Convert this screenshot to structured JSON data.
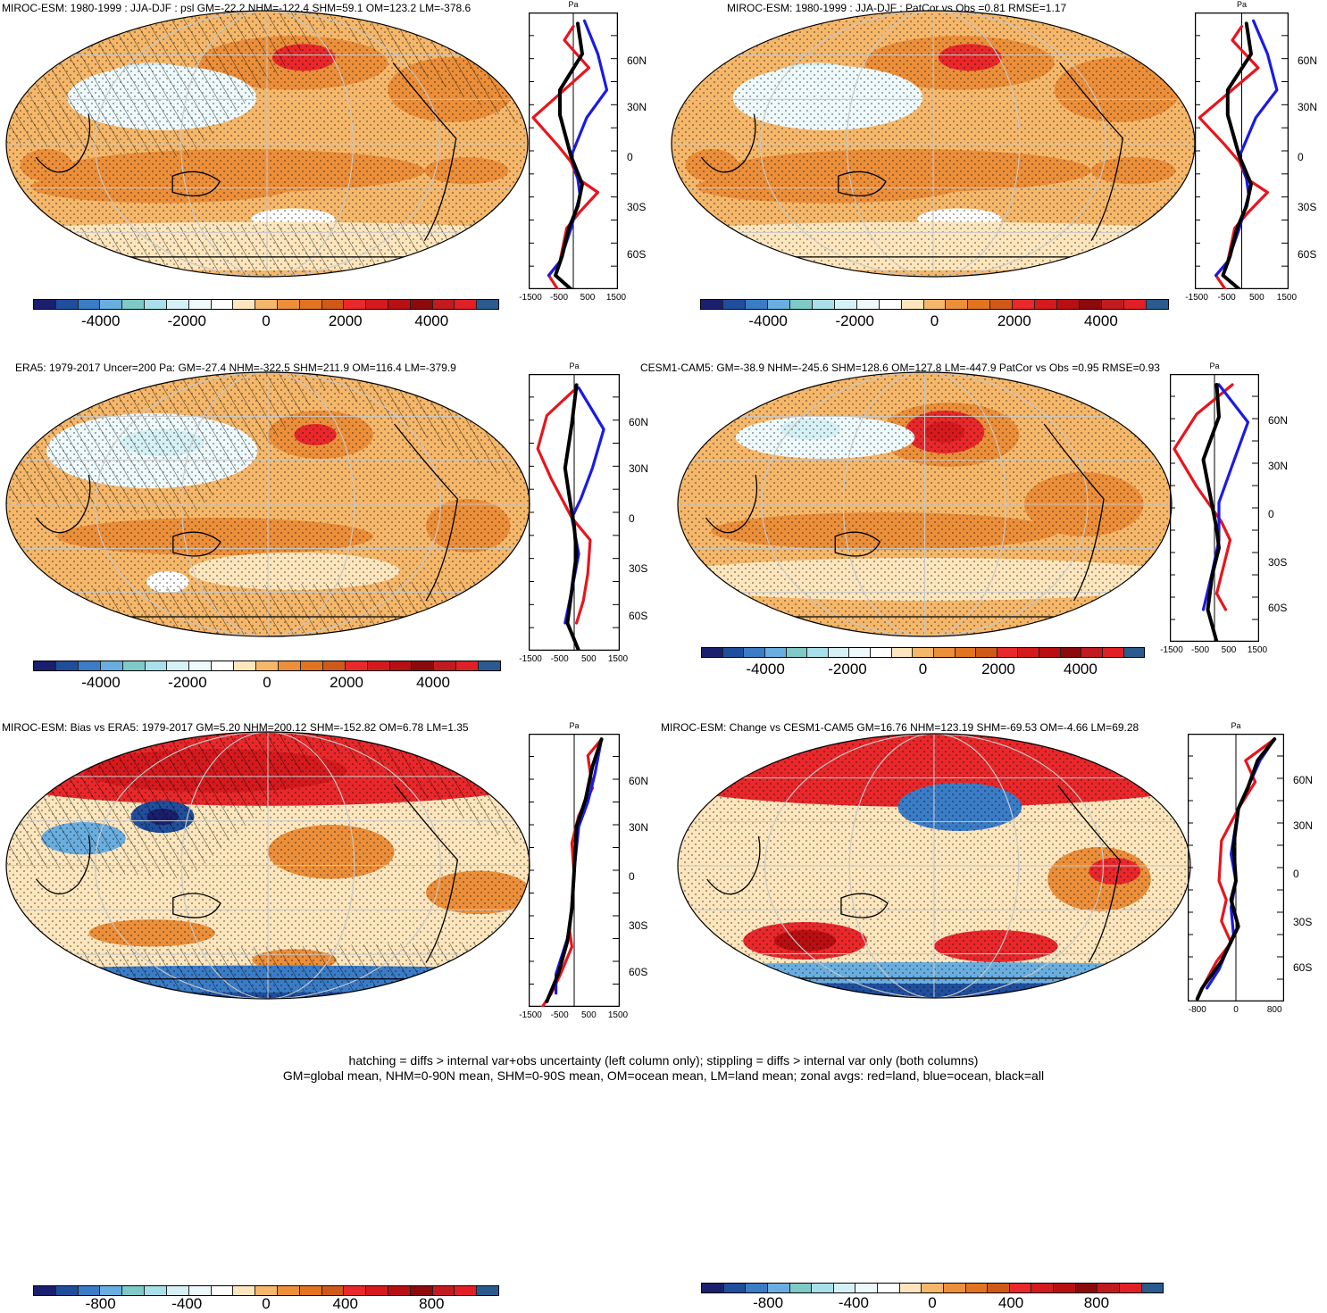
{
  "panels": [
    {
      "title": "MIROC-ESM: 1980-1999 : JJA-DJF : psl GM=-22.2 NHM=-122.4 SHM=59.1 OM=123.2 LM=-378.6",
      "cbar_labels": [
        "-4000",
        "-2000",
        "0",
        "2000",
        "4000"
      ],
      "zonal_x_labels": [
        "-1500",
        "-500",
        "500",
        "1500"
      ],
      "unit": "Pa",
      "lat_labels": [
        "60N",
        "30N",
        "0",
        "30S",
        "60S"
      ],
      "hatching": true,
      "variant": 0
    },
    {
      "title": "MIROC-ESM: 1980-1999 : JJA-DJF : PatCor vs Obs =0.81 RMSE=1.17",
      "cbar_labels": [
        "-4000",
        "-2000",
        "0",
        "2000",
        "4000"
      ],
      "zonal_x_labels": [
        "-1500",
        "-500",
        "500",
        "1500"
      ],
      "unit": "Pa",
      "lat_labels": [
        "60N",
        "30N",
        "0",
        "30S",
        "60S"
      ],
      "hatching": false,
      "variant": 0
    },
    {
      "title": "ERA5: 1979-2017 Uncer=200 Pa: GM=-27.4 NHM=-322.5 SHM=211.9 OM=116.4 LM=-379.9",
      "cbar_labels": [
        "-4000",
        "-2000",
        "0",
        "2000",
        "4000"
      ],
      "zonal_x_labels": [
        "-1500",
        "-500",
        "500",
        "1500"
      ],
      "unit": "Pa",
      "lat_labels": [
        "60N",
        "30N",
        "0",
        "30S",
        "60S"
      ],
      "hatching": true,
      "variant": 1
    },
    {
      "title": "CESM1-CAM5: GM=-38.9 NHM=-245.6 SHM=128.6 OM=127.8 LM=-447.9 PatCor vs Obs =0.95 RMSE=0.93",
      "cbar_labels": [
        "-4000",
        "-2000",
        "0",
        "2000",
        "4000"
      ],
      "zonal_x_labels": [
        "-1500",
        "-500",
        "500",
        "1500"
      ],
      "unit": "Pa",
      "lat_labels": [
        "60N",
        "30N",
        "0",
        "30S",
        "60S"
      ],
      "hatching": false,
      "variant": 2
    },
    {
      "title": "MIROC-ESM: Bias vs ERA5: 1979-2017 GM=5.20 NHM=200.12 SHM=-152.82 OM=6.78 LM=1.35",
      "cbar_labels": [
        "-800",
        "-400",
        "0",
        "400",
        "800"
      ],
      "zonal_x_labels": [
        "-1500",
        "-500",
        "500",
        "1500"
      ],
      "unit": "Pa",
      "lat_labels": [
        "60N",
        "30N",
        "0",
        "30S",
        "60S"
      ],
      "hatching": true,
      "variant": 3
    },
    {
      "title": "MIROC-ESM: Change vs CESM1-CAM5 GM=16.76 NHM=123.19 SHM=-69.53 OM=-4.66 LM=69.28",
      "cbar_labels": [
        "-800",
        "-400",
        "0",
        "400",
        "800"
      ],
      "zonal_x_labels": [
        "-800",
        "0",
        "800"
      ],
      "unit": "Pa",
      "lat_labels": [
        "60N",
        "30N",
        "0",
        "30S",
        "60S"
      ],
      "hatching": false,
      "variant": 4
    }
  ],
  "colorbar_colors": [
    "#1a1f6e",
    "#1f4e9c",
    "#3b7cc7",
    "#6aaee0",
    "#7fc9c7",
    "#a9dfe9",
    "#d6f1f6",
    "#eef9fb",
    "#ffffff",
    "#fde6bd",
    "#f5b76a",
    "#ec8f3a",
    "#e27421",
    "#cf5a18",
    "#e8282b",
    "#d51a1e",
    "#b80f12",
    "#8c0a0c",
    "#c21b1f",
    "#e01f26",
    "#2b5a8f"
  ],
  "legend": {
    "red": "land",
    "blue": "ocean",
    "black": "all"
  },
  "footer": {
    "line1": "hatching = diffs > internal var+obs uncertainty (left column only); stippling = diffs > internal var only (both columns)",
    "line2": "GM=global mean, NHM=0-90N mean, SHM=0-90S mean, OM=ocean mean, LM=land mean; zonal avgs: red=land, blue=ocean, black=all"
  },
  "chart_data": [
    {
      "type": "heatmap",
      "title": "MIROC-ESM: 1980-1999 : JJA-DJF : psl GM=-22.2 NHM=-122.4 SHM=59.1 OM=123.2 LM=-378.6",
      "colorbar_ticks": [
        -4000,
        -2000,
        0,
        2000,
        4000
      ],
      "zonal_xlim": [
        -1500,
        1500
      ],
      "zonal_unit": "Pa",
      "lat_ticks": [
        "60N",
        "30N",
        "0",
        "30S",
        "60S"
      ],
      "series": [
        {
          "name": "land",
          "color": "red"
        },
        {
          "name": "ocean",
          "color": "blue"
        },
        {
          "name": "all",
          "color": "black"
        }
      ]
    },
    {
      "type": "heatmap",
      "title": "MIROC-ESM: 1980-1999 : JJA-DJF : PatCor vs Obs =0.81 RMSE=1.17",
      "colorbar_ticks": [
        -4000,
        -2000,
        0,
        2000,
        4000
      ],
      "zonal_xlim": [
        -1500,
        1500
      ],
      "zonal_unit": "Pa",
      "lat_ticks": [
        "60N",
        "30N",
        "0",
        "30S",
        "60S"
      ]
    },
    {
      "type": "heatmap",
      "title": "ERA5: 1979-2017 Uncer=200 Pa: GM=-27.4 NHM=-322.5 SHM=211.9 OM=116.4 LM=-379.9",
      "colorbar_ticks": [
        -4000,
        -2000,
        0,
        2000,
        4000
      ],
      "zonal_xlim": [
        -1500,
        1500
      ],
      "zonal_unit": "Pa",
      "lat_ticks": [
        "60N",
        "30N",
        "0",
        "30S",
        "60S"
      ]
    },
    {
      "type": "heatmap",
      "title": "CESM1-CAM5: GM=-38.9 NHM=-245.6 SHM=128.6 OM=127.8 LM=-447.9 PatCor vs Obs =0.95 RMSE=0.93",
      "colorbar_ticks": [
        -4000,
        -2000,
        0,
        2000,
        4000
      ],
      "zonal_xlim": [
        -1500,
        1500
      ],
      "zonal_unit": "Pa",
      "lat_ticks": [
        "60N",
        "30N",
        "0",
        "30S",
        "60S"
      ]
    },
    {
      "type": "heatmap",
      "title": "MIROC-ESM: Bias vs ERA5: 1979-2017 GM=5.20 NHM=200.12 SHM=-152.82 OM=6.78 LM=1.35",
      "colorbar_ticks": [
        -800,
        -400,
        0,
        400,
        800
      ],
      "zonal_xlim": [
        -1500,
        1500
      ],
      "zonal_unit": "Pa",
      "lat_ticks": [
        "60N",
        "30N",
        "0",
        "30S",
        "60S"
      ]
    },
    {
      "type": "heatmap",
      "title": "MIROC-ESM: Change vs CESM1-CAM5 GM=16.76 NHM=123.19 SHM=-69.53 OM=-4.66 LM=69.28",
      "colorbar_ticks": [
        -800,
        0,
        800
      ],
      "zonal_xlim": [
        -1000,
        1000
      ],
      "zonal_unit": "Pa",
      "lat_ticks": [
        "60N",
        "30N",
        "0",
        "30S",
        "60S"
      ]
    }
  ]
}
